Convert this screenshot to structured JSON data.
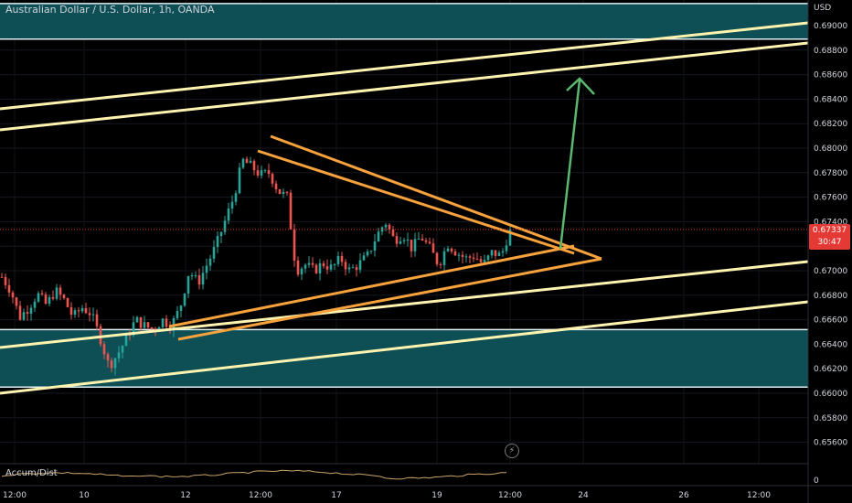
{
  "header": {
    "title": "Australian Dollar / U.S. Dollar, 1h, OANDA"
  },
  "axis": {
    "currency": "USD",
    "ticks": [
      "0.69000",
      "0.68800",
      "0.68600",
      "0.68400",
      "0.68200",
      "0.68000",
      "0.67800",
      "0.67600",
      "0.67400",
      "0.67200",
      "0.67000",
      "0.66800",
      "0.66600",
      "0.66400",
      "0.66200",
      "0.66000",
      "0.65800",
      "0.65600"
    ],
    "indicator_zero": "0"
  },
  "time_axis": {
    "ticks": [
      "12:00",
      "10",
      "12",
      "12:00",
      "17",
      "19",
      "12:00",
      "24",
      "26",
      "12:00"
    ]
  },
  "price_tag": {
    "value": "0.67337",
    "countdown": "30:47"
  },
  "indicator": {
    "label": "Accum/Dist"
  },
  "colors": {
    "background": "#000000",
    "zone_fill": "#0d4f55",
    "zone_border": "#e0f0f2",
    "channel": "#fff3b0",
    "triangle": "#f7a23c",
    "arrow": "#5bb870",
    "bull": "#26a69a",
    "bear": "#ef5350",
    "indicator_line": "#c8a36a"
  },
  "chart_data": {
    "type": "candlestick",
    "symbol": "AUD/USD",
    "interval": "1h",
    "source": "OANDA",
    "ylim": [
      0.6544,
      0.6918
    ],
    "last_price": 0.67337,
    "zones": [
      {
        "from": 0.6889,
        "to": 0.6918
      },
      {
        "from": 0.6605,
        "to": 0.6652
      }
    ],
    "price_path": [
      0.6695,
      0.6684,
      0.6662,
      0.667,
      0.6681,
      0.6672,
      0.6684,
      0.6676,
      0.6662,
      0.667,
      0.6665,
      0.6646,
      0.6622,
      0.6632,
      0.6645,
      0.666,
      0.6655,
      0.6652,
      0.666,
      0.6655,
      0.667,
      0.67,
      0.669,
      0.6705,
      0.672,
      0.674,
      0.676,
      0.679,
      0.6785,
      0.6778,
      0.678,
      0.6765,
      0.676,
      0.67,
      0.6705,
      0.67,
      0.6706,
      0.6702,
      0.671,
      0.67,
      0.6705,
      0.6712,
      0.6728,
      0.674,
      0.6725,
      0.673,
      0.6718,
      0.6728,
      0.6718,
      0.6705,
      0.6722,
      0.6715,
      0.671,
      0.6712,
      0.6705,
      0.6715,
      0.6712,
      0.6734
    ]
  }
}
